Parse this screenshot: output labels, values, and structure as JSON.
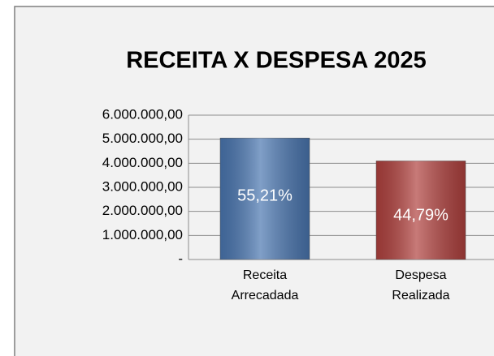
{
  "chart_data": {
    "type": "bar",
    "title": "RECEITA X DESPESA 2025",
    "categories": [
      "Receita Arrecadada",
      "Despesa Realizada"
    ],
    "values": [
      5050000,
      4097000
    ],
    "colors": [
      "#4a76b0",
      "#b0413e"
    ],
    "share_labels": [
      "55,21%",
      "44,79%"
    ],
    "ylim": [
      0,
      6000000
    ],
    "yticks": [
      {
        "value": 0,
        "label": "-"
      },
      {
        "value": 1000000,
        "label": "1.000.000,00"
      },
      {
        "value": 2000000,
        "label": "2.000.000,00"
      },
      {
        "value": 3000000,
        "label": "3.000.000,00"
      },
      {
        "value": 4000000,
        "label": "4.000.000,00"
      },
      {
        "value": 5000000,
        "label": "5.000.000,00"
      },
      {
        "value": 6000000,
        "label": "6.000.000,00"
      }
    ],
    "grid": true
  }
}
